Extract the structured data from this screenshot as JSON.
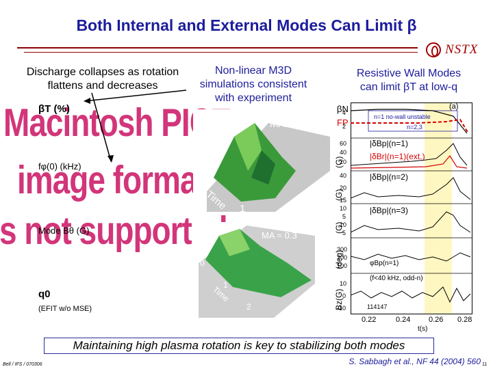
{
  "title": "Both Internal and External Modes Can Limit β",
  "logo_text": "NSTX",
  "left": {
    "heading": [
      "Discharge collapses as rotation",
      "flattens and decreases"
    ],
    "pict_lines": [
      "Macintosh PICT",
      "image format",
      "s not supported"
    ],
    "labels": {
      "betaT": "βT (%)",
      "fphi": "fφ(0) (kHz)",
      "modeB": "Mode Bθ (G)",
      "q0": "q0",
      "efit": "(EFIT w/o MSE)"
    }
  },
  "middle": {
    "heading": [
      "Non-linear M3D",
      "simulations consistent",
      "with experiment"
    ],
    "top_sim": {
      "ma": "MA = 0",
      "axis_zero": "0",
      "axis_time": "Time",
      "axis_one": "1"
    },
    "bottom_sim": {
      "ma": "MA = 0.3",
      "axis_zero": "0",
      "axis_one": "1",
      "axis_time": "Time",
      "axis_two": "2"
    }
  },
  "right": {
    "heading": [
      "Resistive Wall Modes",
      "can limit βT at low-q"
    ],
    "panel_a": {
      "tag": "(a)",
      "beta_n": "βN",
      "fp": "FP",
      "no_wall": "n=1 no-wall unstable",
      "n23": "n=2,3"
    },
    "ylabels": [
      "(G)",
      "(G)",
      "(G)",
      "(deg)",
      "Bz(G)"
    ],
    "traces": [
      "|δBp|(n=1)",
      "|δBr|(n=1)(ext.)",
      "|δBp|(n=2)",
      "|δBp|(n=3)",
      "φBp(n=1)",
      "(f<40 kHz, odd-n)"
    ],
    "shot": "114147",
    "ticks_left": [
      "4",
      "2",
      "60",
      "40",
      "20",
      "40",
      "20",
      "15",
      "10",
      "5",
      "10",
      "5",
      "300",
      "200",
      "100",
      "10",
      "0",
      "-10"
    ],
    "x_ticks": [
      "0.22",
      "0.24",
      "0.26",
      "0.28"
    ],
    "x_label": "t(s)"
  },
  "banner": "Maintaining high plasma rotation is key to stabilizing both modes",
  "footer_left": "Bell / IFS / 070306",
  "citation": "S. Sabbagh et al., NF 44 (2004) 560",
  "page_number": "11",
  "colors": {
    "title": "#1c1c9c",
    "rule": "#8c0000",
    "pict": "#d2357a",
    "highlight": "#fff7c2"
  }
}
